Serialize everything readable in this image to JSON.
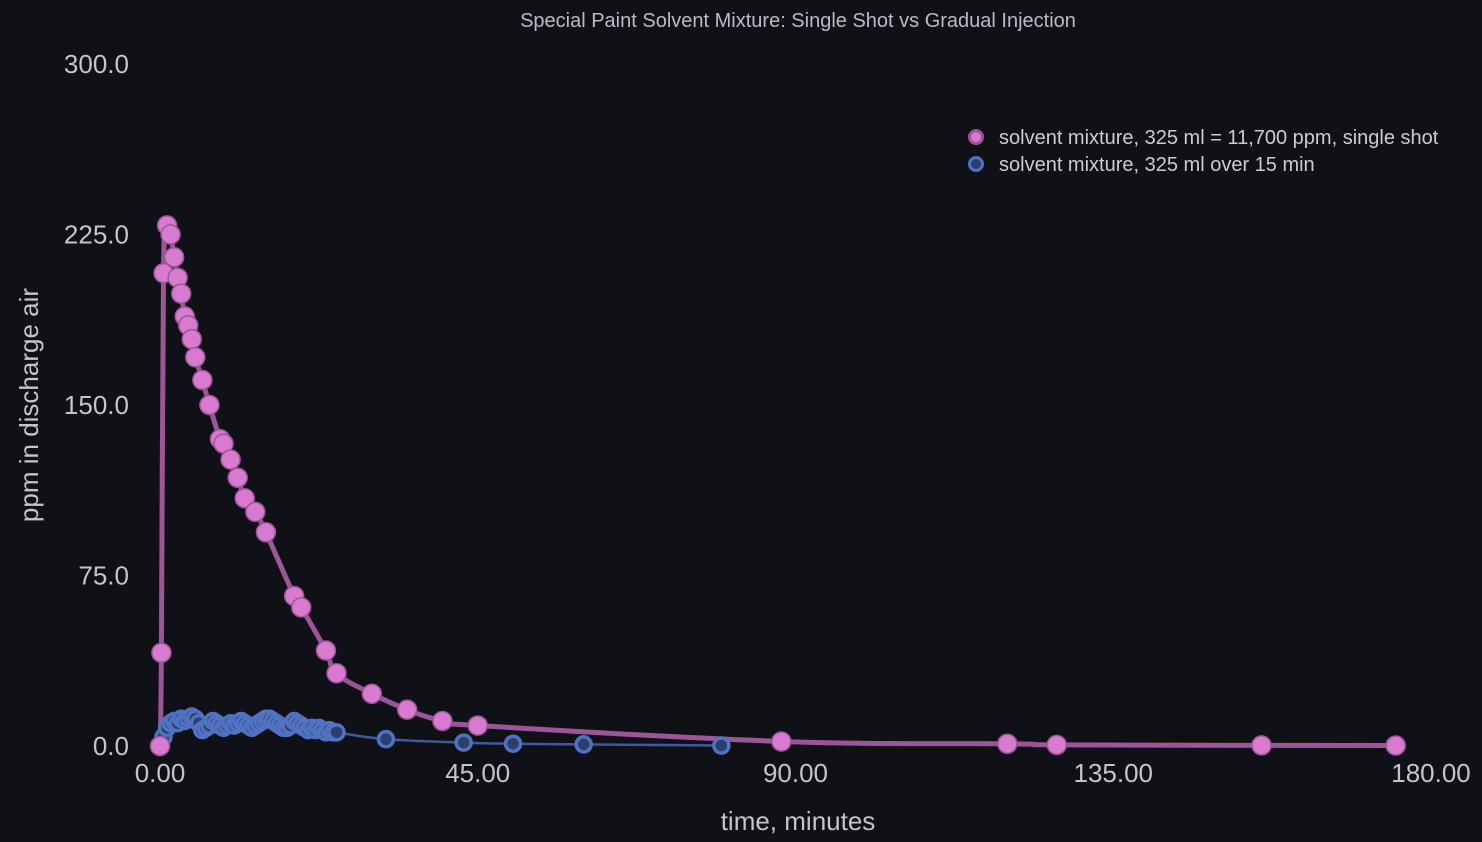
{
  "chart_data": {
    "type": "line",
    "title": "Special Paint Solvent Mixture: Single Shot vs Gradual Injection",
    "xlabel": "time, minutes",
    "ylabel": "ppm in discharge air",
    "xlim": [
      0,
      180
    ],
    "ylim": [
      0,
      300
    ],
    "xticks": [
      "0.00",
      "45.00",
      "90.00",
      "135.00",
      "180.00"
    ],
    "yticks": [
      "0.0",
      "75.0",
      "150.0",
      "225.0",
      "300.0"
    ],
    "grid": false,
    "legend_position": "top-right",
    "series": [
      {
        "name": "solvent mixture, 325 ml = 11,700 ppm, single shot",
        "color": "#d77ad0",
        "line_color": "#9c5596",
        "x": [
          0,
          0.2,
          0.5,
          1.0,
          1.5,
          2.0,
          2.5,
          3.0,
          3.5,
          4.0,
          4.5,
          5.0,
          6.0,
          7.0,
          8.5,
          9.0,
          10.0,
          11.0,
          12.0,
          13.5,
          15.0,
          19.0,
          20.0,
          23.5,
          25.0,
          30.0,
          35.0,
          40.0,
          45.0,
          88.0,
          120.0,
          127.0,
          156.0,
          175.0
        ],
        "y": [
          0,
          41,
          208,
          229,
          225,
          215,
          206,
          199,
          189,
          185,
          179,
          171,
          161,
          150,
          135,
          133,
          126,
          118,
          109,
          103,
          94,
          66,
          61,
          42,
          32,
          23,
          16,
          11,
          9,
          2,
          1,
          0.5,
          0.3,
          0.2
        ]
      },
      {
        "name": "solvent mixture, 325 ml over 15 min",
        "color": "#4f73c2",
        "line_color": "#3d5a9a",
        "x": [
          0,
          0.5,
          1.0,
          1.5,
          2.0,
          2.5,
          3.0,
          3.5,
          4.0,
          4.5,
          5.0,
          5.5,
          6.0,
          6.5,
          7.0,
          7.5,
          8.0,
          8.5,
          9.0,
          9.5,
          10.0,
          10.5,
          11.0,
          11.5,
          12.0,
          12.5,
          13.0,
          13.5,
          14.0,
          14.5,
          15.0,
          15.5,
          16.0,
          16.5,
          17.0,
          17.5,
          18.0,
          18.5,
          19.0,
          19.5,
          20.0,
          20.5,
          21.0,
          21.5,
          22.0,
          22.5,
          23.0,
          23.5,
          24.0,
          24.5,
          25.0,
          32.0,
          43.0,
          50.0,
          60.0,
          79.5
        ],
        "y": [
          0,
          4,
          8,
          10,
          11,
          10,
          12,
          11,
          12,
          13,
          12,
          10,
          7,
          8,
          9,
          11,
          10,
          9,
          8,
          9,
          10,
          9,
          10,
          11,
          10,
          9,
          8,
          9,
          10,
          11,
          12,
          12,
          11,
          10,
          9,
          8,
          8,
          9,
          11,
          10,
          9,
          8,
          7,
          8,
          7,
          8,
          7,
          6,
          7,
          6,
          6,
          3,
          1.5,
          1,
          0.7,
          0.2
        ]
      }
    ]
  }
}
